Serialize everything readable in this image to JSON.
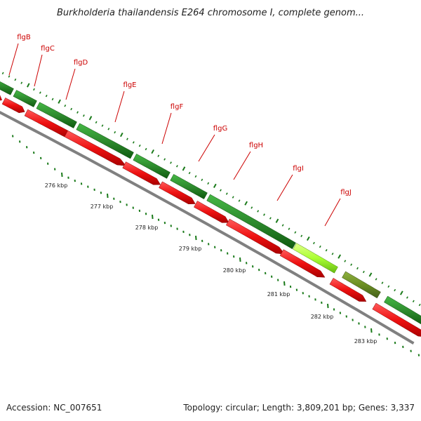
{
  "title": "Burkholderia thailandensis E264 chromosome I, complete genom...",
  "footer": {
    "accession": "Accession: NC_007651",
    "summary": "Topology: circular; Length: 3,809,201 bp; Genes: 3,337"
  },
  "colors": {
    "gene_forward": "#2e8b2e",
    "gene_highlight": "#aaff33",
    "gene_olive": "#6b8e23",
    "cds_reverse": "#ee1111",
    "backbone": "#808080",
    "gene_label": "#cc0000",
    "ticks": "#1a7a1a",
    "tick_label": "#222222"
  },
  "gene_labels": [
    "flgB",
    "flgC",
    "flgD",
    "flgE",
    "flgF",
    "flgG",
    "flgH",
    "flgI",
    "flgJ"
  ],
  "scale_labels": [
    "276 kbp",
    "277 kbp",
    "278 kbp",
    "279 kbp",
    "280 kbp",
    "281 kbp",
    "282 kbp",
    "283 kbp"
  ]
}
